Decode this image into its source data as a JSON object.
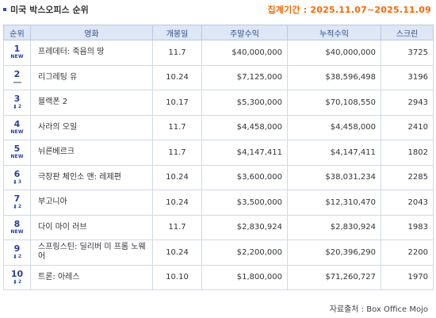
{
  "header": {
    "title": "미국 박스오피스 순위",
    "period": "집계기간 : 2025.11.07~2025.11.09"
  },
  "columns": [
    "순위",
    "영화",
    "개봉일",
    "주말수익",
    "누적수익",
    "스크린"
  ],
  "rows": [
    {
      "rank": "1",
      "indicator": "new",
      "change": "",
      "change_label": "NEW",
      "title": "프레데터: 죽음의 땅",
      "open": "11.7",
      "weekend": "$40,000,000",
      "total": "$40,000,000",
      "screens": "3725"
    },
    {
      "rank": "2",
      "indicator": "same",
      "change": "",
      "change_label": "",
      "title": "리그레팅 유",
      "open": "10.24",
      "weekend": "$7,125,000",
      "total": "$38,596,498",
      "screens": "3196"
    },
    {
      "rank": "3",
      "indicator": "down",
      "change": "2",
      "change_label": "",
      "title": "블랙폰 2",
      "open": "10.17",
      "weekend": "$5,300,000",
      "total": "$70,108,550",
      "screens": "2943"
    },
    {
      "rank": "4",
      "indicator": "new",
      "change": "",
      "change_label": "NEW",
      "title": "사라의 오일",
      "open": "11.7",
      "weekend": "$4,458,000",
      "total": "$4,458,000",
      "screens": "2410"
    },
    {
      "rank": "5",
      "indicator": "new",
      "change": "",
      "change_label": "NEW",
      "title": "뉘른베르크",
      "open": "11.7",
      "weekend": "$4,147,411",
      "total": "$4,147,411",
      "screens": "1802"
    },
    {
      "rank": "6",
      "indicator": "down",
      "change": "3",
      "change_label": "",
      "title": "극장판 체인소 맨: 레제편",
      "open": "10.24",
      "weekend": "$3,600,000",
      "total": "$38,031,234",
      "screens": "2285"
    },
    {
      "rank": "7",
      "indicator": "down",
      "change": "2",
      "change_label": "",
      "title": "부고니아",
      "open": "10.24",
      "weekend": "$3,500,000",
      "total": "$12,310,470",
      "screens": "2043"
    },
    {
      "rank": "8",
      "indicator": "new",
      "change": "",
      "change_label": "NEW",
      "title": "다이 마이 러브",
      "open": "11.7",
      "weekend": "$2,830,924",
      "total": "$2,830,924",
      "screens": "1983"
    },
    {
      "rank": "9",
      "indicator": "down",
      "change": "2",
      "change_label": "",
      "title": "스프링스틴: 딜리버 미 프롬 노웨어",
      "open": "10.24",
      "weekend": "$2,200,000",
      "total": "$20,396,290",
      "screens": "2200"
    },
    {
      "rank": "10",
      "indicator": "down",
      "change": "2",
      "change_label": "",
      "title": "트론: 아레스",
      "open": "10.10",
      "weekend": "$1,800,000",
      "total": "$71,260,727",
      "screens": "1970"
    }
  ],
  "footer": {
    "source": "자료출처 : Box Office Mojo"
  },
  "colors": {
    "accent_orange": "#ff6600",
    "rank_blue": "#2a3f9a",
    "header_bg": "#dde7f5",
    "border": "#cfd9e8"
  }
}
